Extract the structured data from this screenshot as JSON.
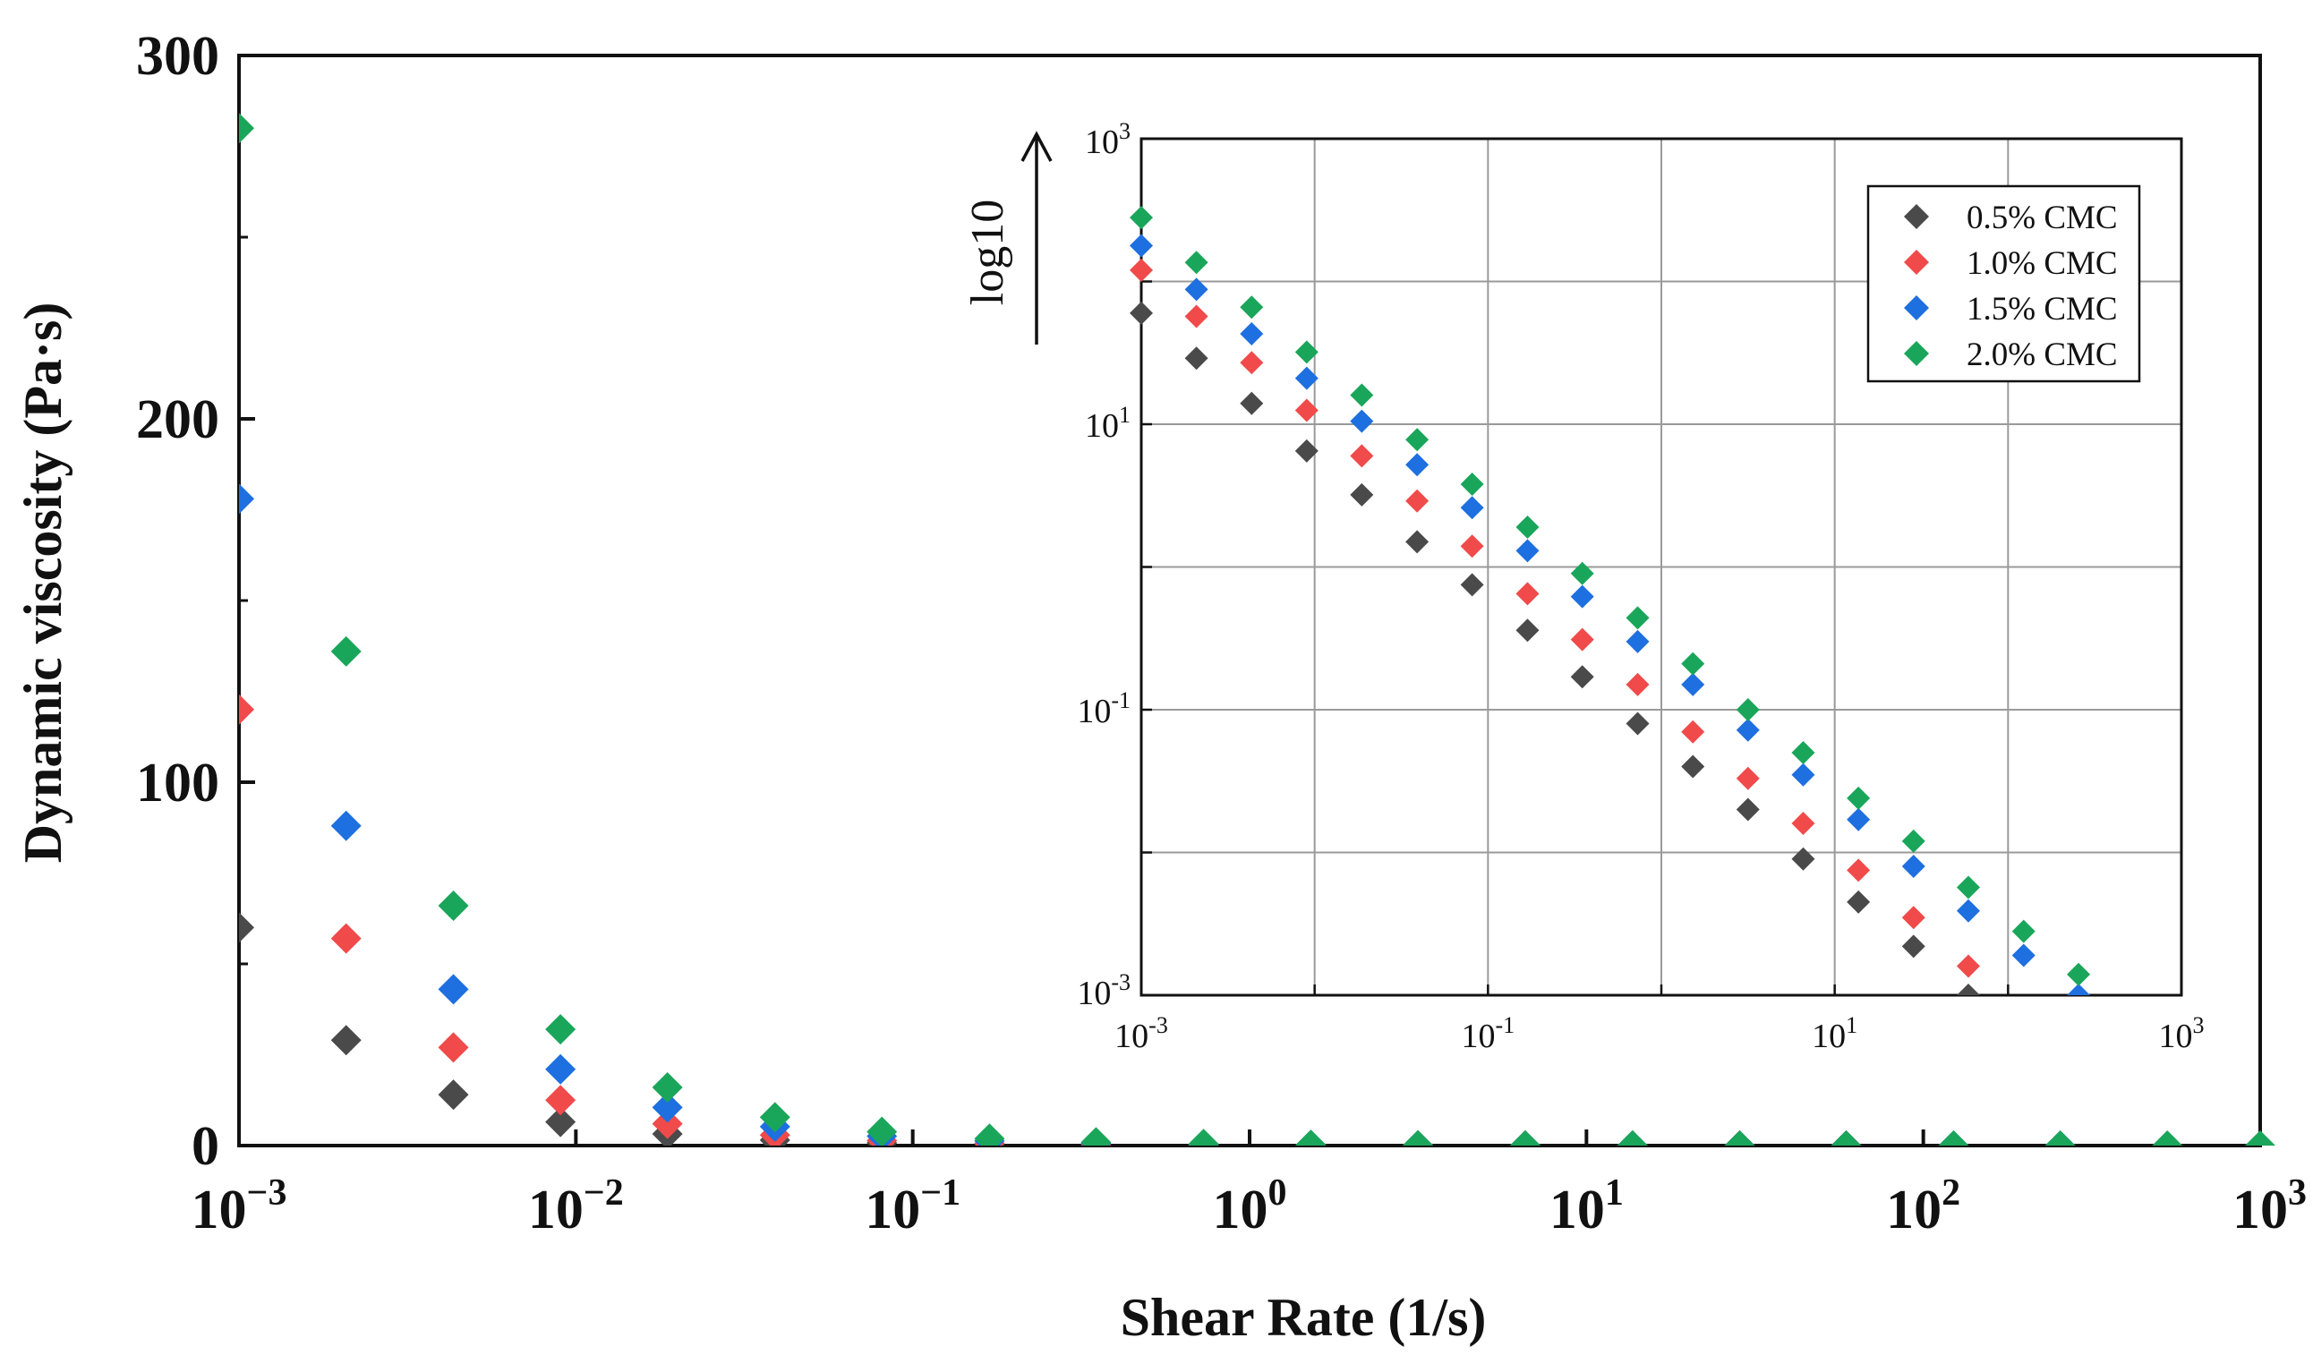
{
  "chart_data": [
    {
      "type": "scatter",
      "role": "main",
      "title": "",
      "xlabel": "Shear Rate (1/s)",
      "ylabel": "Dynamic viscosity (Pa·s)",
      "xscale": "log",
      "xlim": [
        0.001,
        1000
      ],
      "ylim": [
        0,
        300
      ],
      "yticks": [
        0,
        100,
        200,
        300
      ],
      "xticks": [
        {
          "value": 0.001,
          "base": "10",
          "exp": "−3"
        },
        {
          "value": 0.01,
          "base": "10",
          "exp": "−2"
        },
        {
          "value": 0.1,
          "base": "10",
          "exp": "−1"
        },
        {
          "value": 1,
          "base": "10",
          "exp": "0"
        },
        {
          "value": 10,
          "base": "10",
          "exp": "1"
        },
        {
          "value": 100,
          "base": "10",
          "exp": "2"
        },
        {
          "value": 1000,
          "base": "10",
          "exp": "3"
        }
      ],
      "grid": false,
      "series": [
        {
          "name": "0.5% CMC",
          "color": "#4a4a4a",
          "points": [
            [
              0.001,
              60
            ],
            [
              0.00208,
              29
            ],
            [
              0.00433,
              14
            ],
            [
              0.009,
              6.5
            ],
            [
              0.0187,
              3.2
            ],
            [
              0.039,
              1.5
            ],
            [
              0.081,
              0.75
            ],
            [
              0.169,
              0.36
            ],
            [
              0.35,
              0.17
            ],
            [
              0.73,
              0.08
            ],
            [
              1.52,
              0.04
            ],
            [
              3.16,
              0.02
            ],
            [
              6.58,
              0.009
            ],
            [
              13.7,
              0.0045
            ],
            [
              28.5,
              0.0022
            ],
            [
              59,
              0.001
            ]
          ]
        },
        {
          "name": "1.0% CMC",
          "color": "#f04a4a",
          "points": [
            [
              0.001,
              120
            ],
            [
              0.00208,
              57
            ],
            [
              0.00433,
              27
            ],
            [
              0.009,
              12.5
            ],
            [
              0.0187,
              6
            ],
            [
              0.039,
              2.9
            ],
            [
              0.081,
              1.4
            ],
            [
              0.169,
              0.65
            ],
            [
              0.35,
              0.31
            ],
            [
              0.73,
              0.15
            ],
            [
              1.52,
              0.07
            ],
            [
              3.16,
              0.033
            ],
            [
              6.58,
              0.016
            ],
            [
              13.7,
              0.0075
            ],
            [
              28.5,
              0.0035
            ],
            [
              59,
              0.0016
            ]
          ]
        },
        {
          "name": "1.5% CMC",
          "color": "#1e6fe0",
          "points": [
            [
              0.001,
              178
            ],
            [
              0.00208,
              88
            ],
            [
              0.00433,
              43
            ],
            [
              0.009,
              21
            ],
            [
              0.0187,
              10.5
            ],
            [
              0.039,
              5.2
            ],
            [
              0.081,
              2.6
            ],
            [
              0.169,
              1.3
            ],
            [
              0.35,
              0.62
            ],
            [
              0.73,
              0.3
            ],
            [
              1.52,
              0.15
            ],
            [
              3.16,
              0.072
            ],
            [
              6.58,
              0.035
            ],
            [
              13.7,
              0.017
            ],
            [
              28.5,
              0.008
            ],
            [
              59,
              0.0039
            ],
            [
              123,
              0.0019
            ],
            [
              255,
              0.001
            ]
          ]
        },
        {
          "name": "2.0% CMC",
          "color": "#1aa65a",
          "points": [
            [
              0.001,
              280
            ],
            [
              0.00208,
              136
            ],
            [
              0.00433,
              66
            ],
            [
              0.009,
              32
            ],
            [
              0.0187,
              16
            ],
            [
              0.039,
              7.8
            ],
            [
              0.081,
              3.8
            ],
            [
              0.169,
              1.9
            ],
            [
              0.35,
              0.9
            ],
            [
              0.73,
              0.44
            ],
            [
              1.52,
              0.21
            ],
            [
              3.16,
              0.1
            ],
            [
              6.58,
              0.05
            ],
            [
              13.7,
              0.024
            ],
            [
              28.5,
              0.012
            ],
            [
              59,
              0.0057
            ],
            [
              123,
              0.0028
            ],
            [
              255,
              0.0014
            ],
            [
              530,
              0.0007
            ],
            [
              1000,
              0.00035
            ]
          ]
        }
      ]
    },
    {
      "type": "scatter",
      "role": "inset",
      "title": "",
      "xscale": "log",
      "yscale": "log",
      "xlim": [
        0.001,
        1000
      ],
      "ylim": [
        0.001,
        1000
      ],
      "grid": true,
      "annotation": "log10",
      "xticks": [
        {
          "value": 0.001,
          "base": "10",
          "exp": "-3"
        },
        {
          "value": 0.1,
          "base": "10",
          "exp": "-1"
        },
        {
          "value": 10,
          "base": "10",
          "exp": "1"
        },
        {
          "value": 1000,
          "base": "10",
          "exp": "3"
        }
      ],
      "yticks": [
        {
          "value": 1000,
          "base": "10",
          "exp": "3"
        },
        {
          "value": 10,
          "base": "10",
          "exp": "1"
        },
        {
          "value": 0.1,
          "base": "10",
          "exp": "-1"
        },
        {
          "value": 0.001,
          "base": "10",
          "exp": "-3"
        }
      ],
      "legend_position": "top-right",
      "legend": [
        "0.5% CMC",
        "1.0% CMC",
        "1.5% CMC",
        "2.0% CMC"
      ]
    }
  ]
}
